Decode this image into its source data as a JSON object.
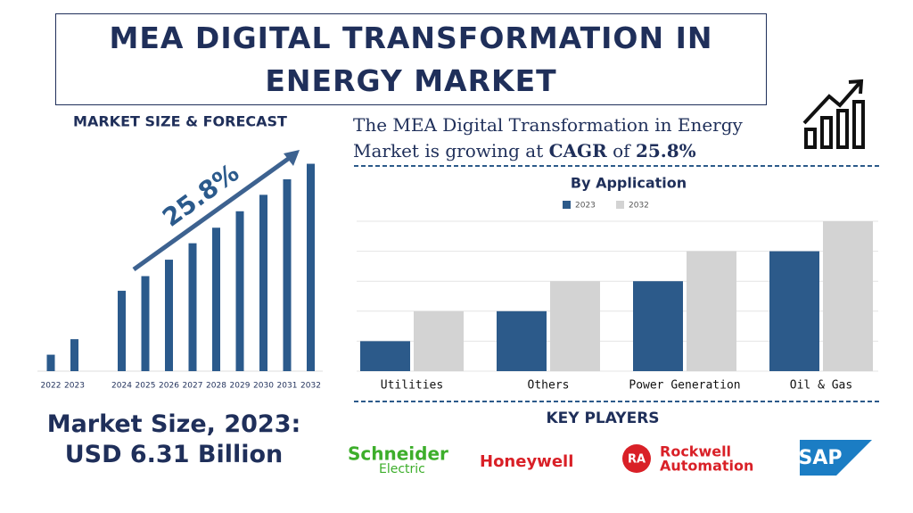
{
  "header": {
    "title": "MEA DIGITAL TRANSFORMATION IN ENERGY MARKET"
  },
  "summary": {
    "line1": "The MEA Digital Transformation in Energy",
    "line2": "Market is growing at",
    "cagr_label": "CAGR",
    "of": "of",
    "cagr_value": "25.8%"
  },
  "market_size": {
    "label": "Market Size, 2023:",
    "value": "USD 6.31 Billion"
  },
  "key_players": {
    "title": "KEY PLAYERS",
    "schneider_1": "Schneider",
    "schneider_2": "Electric",
    "honeywell": "Honeywell",
    "rockwell_badge": "RA",
    "rockwell_1": "Rockwell",
    "rockwell_2": "Automation",
    "sap": "SAP"
  },
  "chart_data": [
    {
      "type": "bar",
      "title": "MARKET SIZE & FORECAST",
      "annotation": "25.8%",
      "categories": [
        "2022",
        "2023",
        null,
        "2024",
        "2025",
        "2026",
        "2027",
        "2028",
        "2029",
        "2030",
        "2031",
        "2032"
      ],
      "values": [
        18,
        35,
        null,
        88,
        104,
        122,
        140,
        157,
        175,
        193,
        210,
        227
      ],
      "color": "#2b5a8c",
      "ylim": [
        0,
        250
      ]
    },
    {
      "type": "grouped_bar",
      "title": "By Application",
      "categories": [
        "Utilities",
        "Others",
        "Power Generation",
        "Oil & Gas"
      ],
      "series": [
        {
          "name": "2023",
          "color": "#2c5a8a",
          "values": [
            1,
            2,
            3,
            4
          ]
        },
        {
          "name": "2032",
          "color": "#d3d3d3",
          "values": [
            2,
            3,
            4,
            5
          ]
        }
      ],
      "ylim": [
        0,
        5
      ],
      "yticks": [
        0,
        1,
        2,
        3,
        4,
        5
      ],
      "grid": true
    }
  ]
}
